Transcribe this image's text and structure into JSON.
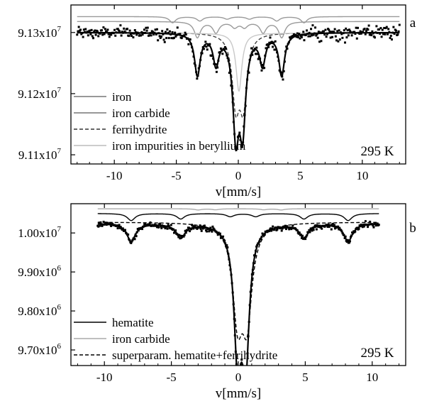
{
  "chart_data": [
    {
      "type": "line",
      "panel_label": "a",
      "annotation": "295 K",
      "xlabel": "v[mm/s]",
      "ylabel": "",
      "xlim": [
        -13.5,
        13.5
      ],
      "ylim": [
        91085000,
        91345000
      ],
      "x_ticks": [
        -10,
        -5,
        0,
        5,
        10
      ],
      "y_ticks": [
        {
          "value": 91300000,
          "mantissa": "9.13x10",
          "exp": "7"
        },
        {
          "value": 91200000,
          "mantissa": "9.12x10",
          "exp": "7"
        },
        {
          "value": 91100000,
          "mantissa": "9.11x10",
          "exp": "7"
        }
      ],
      "baseline": 91300000,
      "noise": 5000,
      "x_range": [
        -13,
        13
      ],
      "legend": [
        {
          "label": "iron",
          "color": "#777777",
          "dash": ""
        },
        {
          "label": "iron carbide",
          "color": "#777777",
          "dash": ""
        },
        {
          "label": "ferrihydrite",
          "color": "#333333",
          "dash": "5,3"
        },
        {
          "label": "iron impurities in beryllium",
          "color": "#bbbbbb",
          "dash": ""
        }
      ],
      "components": [
        {
          "name": "iron",
          "offset": 26000,
          "color": "#9a9a9a",
          "dash": "",
          "lines": [
            {
              "pos": -5.3,
              "depth": 10000,
              "width": 0.3
            },
            {
              "pos": -3.1,
              "depth": 7000,
              "width": 0.3
            },
            {
              "pos": -0.9,
              "depth": 4000,
              "width": 0.3
            },
            {
              "pos": 0.9,
              "depth": 4000,
              "width": 0.3
            },
            {
              "pos": 3.1,
              "depth": 7000,
              "width": 0.3
            },
            {
              "pos": 5.3,
              "depth": 10000,
              "width": 0.3
            }
          ]
        },
        {
          "name": "iron carbide",
          "offset": 18000,
          "color": "#9a9a9a",
          "dash": "",
          "lines": [
            {
              "pos": -3.3,
              "depth": 26000,
              "width": 0.3
            },
            {
              "pos": -1.8,
              "depth": 18000,
              "width": 0.3
            },
            {
              "pos": -0.3,
              "depth": 9000,
              "width": 0.3
            },
            {
              "pos": 0.5,
              "depth": 9000,
              "width": 0.3
            },
            {
              "pos": 2.0,
              "depth": 18000,
              "width": 0.3
            },
            {
              "pos": 3.5,
              "depth": 26000,
              "width": 0.3
            }
          ]
        },
        {
          "name": "ferrihydrite",
          "offset": 0,
          "color": "#444444",
          "dash": "5,3",
          "lines": [
            {
              "pos": -0.2,
              "depth": 110000,
              "width": 0.35
            },
            {
              "pos": 0.4,
              "depth": 110000,
              "width": 0.35
            }
          ]
        },
        {
          "name": "iron impurities in beryllium",
          "offset": -1000,
          "color": "#c8c8c8",
          "dash": "",
          "lines": [
            {
              "pos": 0.05,
              "depth": 95000,
              "width": 0.28
            }
          ]
        }
      ],
      "fit": {
        "color": "#000000",
        "lines": [
          {
            "pos": -3.3,
            "depth": 68000,
            "width": 0.28
          },
          {
            "pos": -1.8,
            "depth": 48000,
            "width": 0.28
          },
          {
            "pos": -0.2,
            "depth": 155000,
            "width": 0.3
          },
          {
            "pos": 0.35,
            "depth": 145000,
            "width": 0.3
          },
          {
            "pos": 1.95,
            "depth": 48000,
            "width": 0.28
          },
          {
            "pos": 3.5,
            "depth": 68000,
            "width": 0.28
          }
        ]
      }
    },
    {
      "type": "line",
      "panel_label": "b",
      "annotation": "295 K",
      "xlabel": "v[mm/s]",
      "ylabel": "",
      "xlim": [
        -12.5,
        12.5
      ],
      "ylim": [
        9660000,
        10075000
      ],
      "x_ticks": [
        -10,
        -5,
        0,
        5,
        10
      ],
      "y_ticks": [
        {
          "value": 10000000,
          "mantissa": "1.00x10",
          "exp": "7"
        },
        {
          "value": 9900000,
          "mantissa": "9.90x10",
          "exp": "6"
        },
        {
          "value": 9800000,
          "mantissa": "9.80x10",
          "exp": "6"
        },
        {
          "value": 9700000,
          "mantissa": "9.70x10",
          "exp": "6"
        }
      ],
      "baseline": 10025000,
      "noise": 3500,
      "x_range": [
        -10.5,
        10.5
      ],
      "legend": [
        {
          "label": "hematite",
          "color": "#000000",
          "dash": ""
        },
        {
          "label": "iron carbide",
          "color": "#aaaaaa",
          "dash": ""
        },
        {
          "label": "superparam. hematite+ferrihydrite",
          "color": "#000000",
          "dash": "5,3"
        }
      ],
      "components": [
        {
          "name": "hematite",
          "offset": 25000,
          "color": "#000000",
          "dash": "",
          "lines": [
            {
              "pos": -8.0,
              "depth": 18000,
              "width": 0.35
            },
            {
              "pos": -4.3,
              "depth": 14000,
              "width": 0.35
            },
            {
              "pos": -0.6,
              "depth": 8000,
              "width": 0.35
            },
            {
              "pos": 1.3,
              "depth": 8000,
              "width": 0.35
            },
            {
              "pos": 4.9,
              "depth": 14000,
              "width": 0.35
            },
            {
              "pos": 8.2,
              "depth": 18000,
              "width": 0.35
            }
          ]
        },
        {
          "name": "iron carbide",
          "offset": 37000,
          "color": "#aaaaaa",
          "dash": "",
          "lines": [
            {
              "pos": -3.0,
              "depth": 3000,
              "width": 0.3
            },
            {
              "pos": -1.7,
              "depth": 2500,
              "width": 0.3
            },
            {
              "pos": 1.9,
              "depth": 2500,
              "width": 0.3
            },
            {
              "pos": 3.2,
              "depth": 3000,
              "width": 0.3
            }
          ]
        },
        {
          "name": "superparam. hematite+ferrihydrite",
          "offset": 3000,
          "color": "#000000",
          "dash": "5,3",
          "lines": [
            {
              "pos": -0.05,
              "depth": 230000,
              "width": 0.45
            },
            {
              "pos": 0.65,
              "depth": 230000,
              "width": 0.45
            }
          ]
        }
      ],
      "fit": {
        "color": "#000000",
        "lines": [
          {
            "pos": -8.0,
            "depth": 45000,
            "width": 0.4
          },
          {
            "pos": -4.3,
            "depth": 35000,
            "width": 0.4
          },
          {
            "pos": -0.05,
            "depth": 320000,
            "width": 0.33
          },
          {
            "pos": 0.55,
            "depth": 330000,
            "width": 0.33
          },
          {
            "pos": 4.9,
            "depth": 35000,
            "width": 0.4
          },
          {
            "pos": 8.2,
            "depth": 45000,
            "width": 0.4
          }
        ]
      }
    }
  ]
}
